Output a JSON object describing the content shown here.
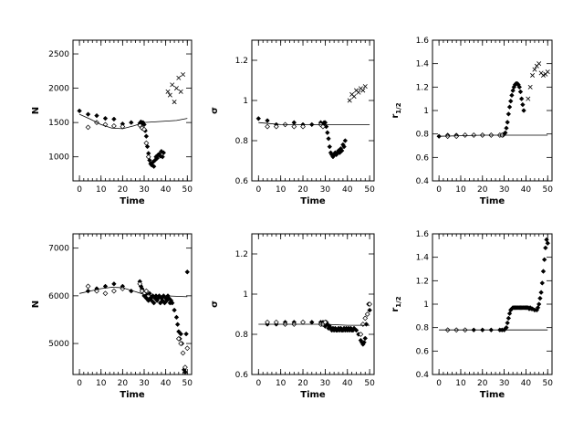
{
  "chart_data": [
    {
      "type": "scatter",
      "xlabel": "Time",
      "ylabel": "N",
      "xlim": [
        -3,
        52
      ],
      "ylim": [
        650,
        2700
      ],
      "xticks": [
        0,
        10,
        20,
        30,
        40,
        50
      ],
      "yticks": [
        1000,
        1500,
        2000,
        2500
      ],
      "ytick_labels": [
        "1000",
        "1500",
        "2000",
        "2500"
      ],
      "series": [
        {
          "style": "filled-diamond",
          "x": [
            0,
            4,
            8,
            12,
            16,
            20,
            24,
            28,
            28.5,
            29,
            29.5,
            30,
            30.5,
            31,
            31.5,
            32,
            32.5,
            33,
            33.5,
            34,
            34.5,
            35,
            35.5,
            36,
            36.5,
            37,
            37.5,
            38,
            38.5,
            39
          ],
          "y": [
            1670,
            1620,
            1600,
            1560,
            1550,
            1480,
            1500,
            1490,
            1510,
            1480,
            1500,
            1470,
            1380,
            1300,
            1150,
            1050,
            950,
            900,
            880,
            920,
            860,
            950,
            1000,
            980,
            1030,
            1040,
            1010,
            1080,
            1000,
            1060
          ]
        },
        {
          "style": "open-diamond",
          "x": [
            4,
            8,
            12,
            16,
            20,
            28,
            29,
            30,
            31,
            32
          ],
          "y": [
            1430,
            1500,
            1470,
            1450,
            1440,
            1460,
            1420,
            1400,
            1200,
            1000
          ]
        },
        {
          "style": "cross",
          "x": [
            41,
            42,
            43,
            44,
            45,
            46,
            47,
            48
          ],
          "y": [
            1950,
            1900,
            2050,
            1800,
            2000,
            2150,
            1950,
            2200
          ]
        },
        {
          "style": "line",
          "x": [
            0,
            5,
            10,
            15,
            20,
            25,
            30,
            35,
            40,
            45,
            50
          ],
          "y": [
            1620,
            1550,
            1470,
            1420,
            1410,
            1450,
            1500,
            1510,
            1520,
            1530,
            1560
          ]
        }
      ]
    },
    {
      "type": "scatter",
      "xlabel": "Time",
      "ylabel": "σ",
      "xlim": [
        -3,
        52
      ],
      "ylim": [
        0.6,
        1.3
      ],
      "xticks": [
        0,
        10,
        20,
        30,
        40,
        50
      ],
      "yticks": [
        0.6,
        0.8,
        1.0,
        1.2
      ],
      "ytick_labels": [
        "0.6",
        "0.8",
        "1",
        "1.2"
      ],
      "series": [
        {
          "style": "filled-diamond",
          "x": [
            0,
            4,
            8,
            12,
            16,
            20,
            24,
            28,
            29,
            29.5,
            30,
            30.5,
            31,
            31.5,
            32,
            32.5,
            33,
            33.5,
            34,
            34.5,
            35,
            35.5,
            36,
            36.5,
            37,
            37.5,
            38,
            38.5,
            39
          ],
          "y": [
            0.91,
            0.9,
            0.88,
            0.88,
            0.89,
            0.88,
            0.88,
            0.89,
            0.88,
            0.89,
            0.89,
            0.87,
            0.84,
            0.81,
            0.77,
            0.74,
            0.73,
            0.72,
            0.73,
            0.74,
            0.73,
            0.74,
            0.75,
            0.74,
            0.76,
            0.75,
            0.78,
            0.77,
            0.8
          ]
        },
        {
          "style": "open-diamond",
          "x": [
            4,
            8,
            12,
            16,
            20,
            28,
            29
          ],
          "y": [
            0.87,
            0.87,
            0.88,
            0.87,
            0.87,
            0.88,
            0.87
          ]
        },
        {
          "style": "cross",
          "x": [
            41,
            42,
            43,
            44,
            45,
            46,
            47,
            48
          ],
          "y": [
            1.0,
            1.03,
            1.02,
            1.05,
            1.04,
            1.06,
            1.05,
            1.07
          ]
        },
        {
          "style": "line",
          "x": [
            0,
            5,
            10,
            15,
            20,
            25,
            30,
            35,
            40,
            45,
            50
          ],
          "y": [
            0.89,
            0.885,
            0.88,
            0.879,
            0.879,
            0.879,
            0.879,
            0.879,
            0.879,
            0.879,
            0.879
          ]
        }
      ]
    },
    {
      "type": "scatter",
      "xlabel": "Time",
      "ylabel": "r1/2",
      "xlim": [
        -3,
        52
      ],
      "ylim": [
        0.4,
        1.6
      ],
      "xticks": [
        0,
        10,
        20,
        30,
        40,
        50
      ],
      "yticks": [
        0.4,
        0.6,
        0.8,
        1.0,
        1.2,
        1.4,
        1.6
      ],
      "ytick_labels": [
        "0.4",
        "0.6",
        "0.8",
        "1",
        "1.2",
        "1.4",
        "1.6"
      ],
      "series": [
        {
          "style": "filled-diamond",
          "x": [
            0,
            4,
            8,
            12,
            16,
            20,
            24,
            28,
            29,
            29.5,
            30,
            30.5,
            31,
            31.5,
            32,
            32.5,
            33,
            33.5,
            34,
            34.5,
            35,
            35.5,
            36,
            36.5,
            37,
            37.5,
            38,
            38.5,
            39
          ],
          "y": [
            0.78,
            0.79,
            0.79,
            0.79,
            0.79,
            0.79,
            0.79,
            0.79,
            0.79,
            0.79,
            0.8,
            0.81,
            0.85,
            0.9,
            0.97,
            1.03,
            1.08,
            1.13,
            1.17,
            1.2,
            1.22,
            1.23,
            1.23,
            1.22,
            1.2,
            1.16,
            1.1,
            1.05,
            1.0
          ]
        },
        {
          "style": "open-diamond",
          "x": [
            4,
            8,
            12,
            16,
            20,
            24,
            28,
            29
          ],
          "y": [
            0.78,
            0.78,
            0.79,
            0.79,
            0.79,
            0.79,
            0.79,
            0.79
          ]
        },
        {
          "style": "cross",
          "x": [
            41,
            42,
            43,
            44,
            45,
            46,
            47,
            48,
            49,
            50
          ],
          "y": [
            1.1,
            1.2,
            1.3,
            1.35,
            1.38,
            1.4,
            1.32,
            1.3,
            1.31,
            1.33
          ]
        },
        {
          "style": "line",
          "x": [
            0,
            10,
            20,
            30,
            40,
            50
          ],
          "y": [
            0.78,
            0.785,
            0.79,
            0.79,
            0.79,
            0.79
          ]
        }
      ]
    },
    {
      "type": "scatter",
      "xlabel": "Time",
      "ylabel": "N",
      "xlim": [
        -3,
        52
      ],
      "ylim": [
        4350,
        7300
      ],
      "xticks": [
        0,
        10,
        20,
        30,
        40,
        50
      ],
      "yticks": [
        5000,
        6000,
        7000
      ],
      "ytick_labels": [
        "5000",
        "6000",
        "7000"
      ],
      "series": [
        {
          "style": "filled-diamond",
          "x": [
            4,
            8,
            12,
            16,
            20,
            24,
            28,
            28.5,
            29,
            29.5,
            30,
            30.5,
            31,
            31.5,
            32,
            32.5,
            33,
            33.5,
            34,
            34.5,
            35,
            35.5,
            36,
            36.5,
            37,
            37.5,
            38,
            38.5,
            39,
            39.5,
            40,
            40.5,
            41,
            41.5,
            42,
            42.5,
            43,
            44,
            45,
            45.5,
            46,
            46.5,
            47,
            47.5,
            48,
            48.5,
            49,
            49.5,
            50
          ],
          "y": [
            6100,
            6150,
            6200,
            6250,
            6200,
            6100,
            6300,
            6200,
            6150,
            6100,
            6000,
            6050,
            5950,
            6000,
            5900,
            6050,
            5950,
            5900,
            6000,
            5850,
            5950,
            6000,
            5900,
            5950,
            6000,
            5850,
            5950,
            5900,
            6000,
            5850,
            5950,
            5900,
            6000,
            5950,
            5850,
            5900,
            5850,
            5700,
            5550,
            5400,
            5250,
            5100,
            5200,
            5000,
            4800,
            4450,
            4400,
            5200,
            6500
          ]
        },
        {
          "style": "open-diamond",
          "x": [
            4,
            8,
            12,
            16,
            20,
            28,
            29,
            30,
            31,
            32,
            46,
            47,
            48,
            49,
            50
          ],
          "y": [
            6200,
            6100,
            6050,
            6100,
            6150,
            6250,
            6100,
            6050,
            6100,
            6000,
            5100,
            5000,
            4800,
            4500,
            4900
          ]
        },
        {
          "style": "line",
          "x": [
            0,
            5,
            10,
            15,
            20,
            25,
            30,
            35,
            40,
            45,
            50
          ],
          "y": [
            6050,
            6100,
            6150,
            6180,
            6170,
            6100,
            6030,
            6000,
            6000,
            5990,
            5980
          ]
        }
      ]
    },
    {
      "type": "scatter",
      "xlabel": "Time",
      "ylabel": "σ",
      "xlim": [
        -3,
        52
      ],
      "ylim": [
        0.6,
        1.3
      ],
      "xticks": [
        0,
        10,
        20,
        30,
        40,
        50
      ],
      "yticks": [
        0.6,
        0.8,
        1.0,
        1.2
      ],
      "ytick_labels": [
        "0.6",
        "0.8",
        "1",
        "1.2"
      ],
      "series": [
        {
          "style": "filled-diamond",
          "x": [
            4,
            8,
            12,
            16,
            20,
            24,
            28,
            28.5,
            29,
            29.5,
            30,
            30.5,
            31,
            31.5,
            32,
            32.5,
            33,
            33.5,
            34,
            34.5,
            35,
            35.5,
            36,
            36.5,
            37,
            37.5,
            38,
            38.5,
            39,
            39.5,
            40,
            40.5,
            41,
            41.5,
            42,
            42.5,
            43,
            44,
            45,
            46,
            46.5,
            47,
            47.5,
            48,
            48.5,
            49,
            49.5,
            50
          ],
          "y": [
            0.85,
            0.85,
            0.86,
            0.86,
            0.86,
            0.86,
            0.86,
            0.85,
            0.86,
            0.85,
            0.84,
            0.86,
            0.85,
            0.83,
            0.84,
            0.83,
            0.82,
            0.83,
            0.82,
            0.83,
            0.82,
            0.82,
            0.83,
            0.82,
            0.83,
            0.82,
            0.82,
            0.83,
            0.82,
            0.83,
            0.82,
            0.83,
            0.82,
            0.83,
            0.82,
            0.82,
            0.83,
            0.82,
            0.8,
            0.77,
            0.76,
            0.75,
            0.76,
            0.78,
            0.85,
            0.9,
            0.95,
            0.92
          ]
        },
        {
          "style": "open-diamond",
          "x": [
            4,
            8,
            12,
            16,
            20,
            28,
            29,
            30,
            46,
            47,
            48,
            49,
            50
          ],
          "y": [
            0.86,
            0.86,
            0.85,
            0.85,
            0.86,
            0.85,
            0.85,
            0.86,
            0.8,
            0.85,
            0.88,
            0.9,
            0.95
          ]
        },
        {
          "style": "line",
          "x": [
            0,
            10,
            20,
            30,
            40,
            50
          ],
          "y": [
            0.85,
            0.85,
            0.85,
            0.85,
            0.845,
            0.845
          ]
        }
      ]
    },
    {
      "type": "scatter",
      "xlabel": "Time",
      "ylabel": "r1/2",
      "xlim": [
        -3,
        52
      ],
      "ylim": [
        0.4,
        1.6
      ],
      "xticks": [
        0,
        10,
        20,
        30,
        40,
        50
      ],
      "yticks": [
        0.4,
        0.6,
        0.8,
        1.0,
        1.2,
        1.4,
        1.6
      ],
      "ytick_labels": [
        "0.4",
        "0.6",
        "0.8",
        "1",
        "1.2",
        "1.4",
        "1.6"
      ],
      "series": [
        {
          "style": "filled-diamond",
          "x": [
            4,
            8,
            12,
            16,
            20,
            24,
            28,
            29,
            30,
            30.5,
            31,
            31.5,
            32,
            32.5,
            33,
            33.5,
            34,
            34.5,
            35,
            35.5,
            36,
            36.5,
            37,
            37.5,
            38,
            38.5,
            39,
            39.5,
            40,
            40.5,
            41,
            41.5,
            42,
            42.5,
            43,
            44,
            45,
            45.5,
            46,
            46.5,
            47,
            47.5,
            48,
            48.5,
            49,
            49.5,
            50
          ],
          "y": [
            0.78,
            0.78,
            0.78,
            0.78,
            0.78,
            0.78,
            0.78,
            0.78,
            0.78,
            0.79,
            0.8,
            0.84,
            0.88,
            0.92,
            0.95,
            0.96,
            0.97,
            0.97,
            0.97,
            0.97,
            0.97,
            0.97,
            0.97,
            0.97,
            0.97,
            0.97,
            0.97,
            0.97,
            0.97,
            0.97,
            0.97,
            0.96,
            0.97,
            0.96,
            0.96,
            0.95,
            0.95,
            0.97,
            1.0,
            1.05,
            1.1,
            1.18,
            1.28,
            1.38,
            1.48,
            1.55,
            1.52
          ]
        },
        {
          "style": "open-diamond",
          "x": [
            4,
            8,
            12
          ],
          "y": [
            0.78,
            0.78,
            0.78
          ]
        },
        {
          "style": "line",
          "x": [
            0,
            10,
            20,
            30,
            40,
            50
          ],
          "y": [
            0.78,
            0.78,
            0.78,
            0.78,
            0.78,
            0.78
          ]
        }
      ]
    }
  ]
}
